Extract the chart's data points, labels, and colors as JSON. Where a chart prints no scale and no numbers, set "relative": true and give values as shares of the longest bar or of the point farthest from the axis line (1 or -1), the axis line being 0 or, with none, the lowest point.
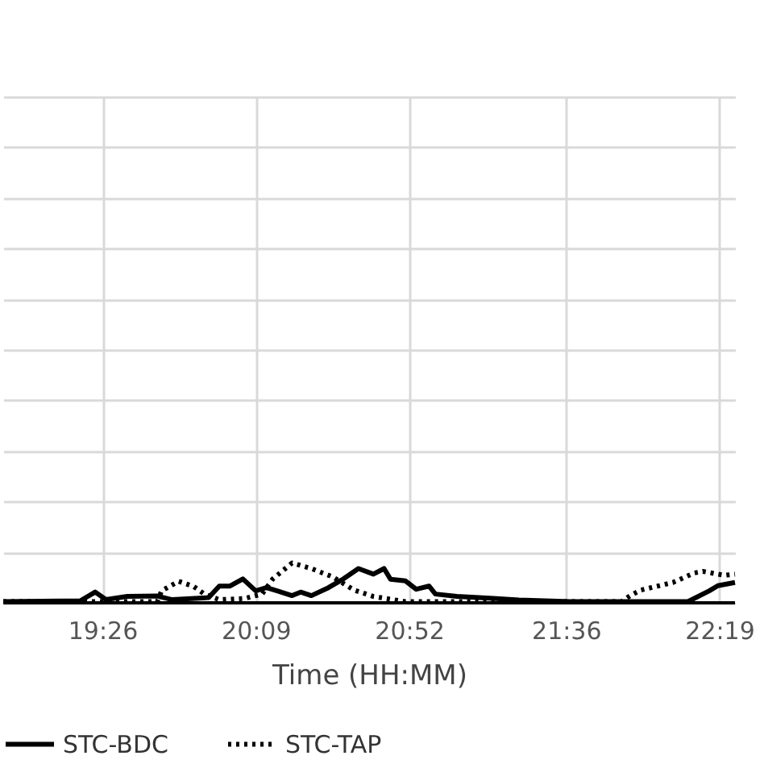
{
  "chart_data": {
    "type": "line",
    "xlabel": "Time (HH:MM)",
    "relative": true,
    "grid": true,
    "legend": "bottom",
    "xlim": [
      18.97,
      22.39
    ],
    "xticks": [
      {
        "value": 19.4333,
        "label": "19:26"
      },
      {
        "value": 20.15,
        "label": "20:09"
      },
      {
        "value": 20.8667,
        "label": "20:52"
      },
      {
        "value": 21.6,
        "label": "21:36"
      },
      {
        "value": 22.3167,
        "label": "22:19"
      }
    ],
    "series": [
      {
        "name": "STC-BDC",
        "color": "#000000",
        "line_style": "solid",
        "x": [
          18.97,
          19.33,
          19.4,
          19.45,
          19.55,
          19.69,
          19.76,
          19.93,
          19.98,
          20.03,
          20.09,
          20.15,
          20.2,
          20.25,
          20.32,
          20.36,
          20.41,
          20.49,
          20.56,
          20.63,
          20.7,
          20.75,
          20.78,
          20.85,
          20.9,
          20.96,
          20.99,
          21.09,
          21.26,
          21.38,
          21.62,
          22.17,
          22.27,
          22.31,
          22.39
        ],
        "values": [
          0.03,
          0.05,
          0.27,
          0.08,
          0.16,
          0.17,
          0.08,
          0.13,
          0.42,
          0.42,
          0.6,
          0.3,
          0.38,
          0.3,
          0.18,
          0.27,
          0.18,
          0.38,
          0.6,
          0.86,
          0.72,
          0.86,
          0.59,
          0.55,
          0.34,
          0.42,
          0.22,
          0.16,
          0.11,
          0.07,
          0.03,
          0.03,
          0.3,
          0.43,
          0.51
        ]
      },
      {
        "name": "STC-TAP",
        "color": "#000000",
        "line_style": "dotted",
        "x": [
          18.97,
          19.69,
          19.71,
          19.79,
          19.86,
          19.91,
          19.98,
          20.1,
          20.18,
          20.23,
          20.32,
          20.41,
          20.51,
          20.61,
          20.7,
          20.85,
          21.86,
          21.9,
          21.95,
          22.1,
          22.2,
          22.24,
          22.34,
          22.39
        ],
        "values": [
          0.03,
          0.03,
          0.3,
          0.54,
          0.41,
          0.22,
          0.08,
          0.11,
          0.22,
          0.6,
          1.0,
          0.86,
          0.65,
          0.32,
          0.16,
          0.03,
          0.03,
          0.18,
          0.32,
          0.51,
          0.75,
          0.79,
          0.69,
          0.72
        ]
      }
    ]
  }
}
